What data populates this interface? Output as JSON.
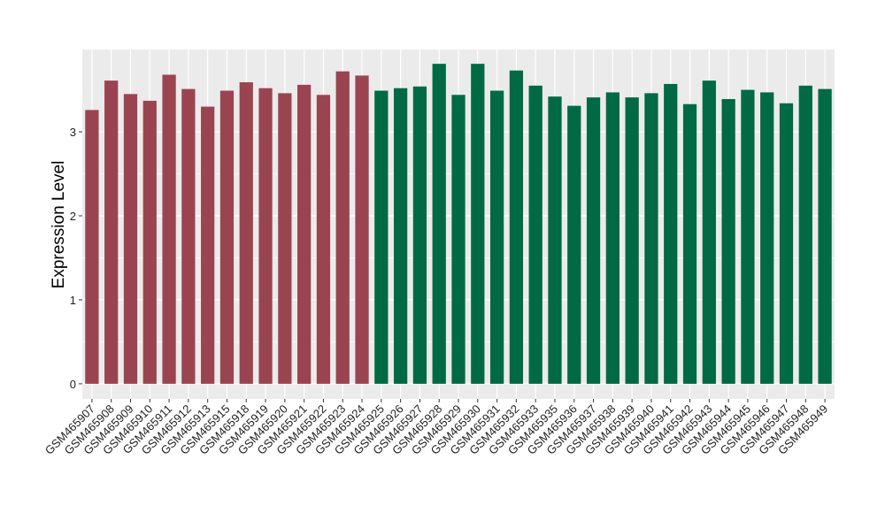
{
  "chart_data": {
    "type": "bar",
    "title": "",
    "xlabel": "",
    "ylabel": "Expression Level",
    "ylim": [
      -0.18,
      3.98
    ],
    "yticks": [
      0,
      1,
      2,
      3
    ],
    "grid": true,
    "legend": "none",
    "colors": {
      "group1": "#9b4451",
      "group2": "#006a45",
      "panel": "#ebebeb",
      "gridline": "#ffffff"
    },
    "categories": [
      "GSM465907",
      "GSM465908",
      "GSM465909",
      "GSM465910",
      "GSM465911",
      "GSM465912",
      "GSM465913",
      "GSM465915",
      "GSM465918",
      "GSM465919",
      "GSM465920",
      "GSM465921",
      "GSM465922",
      "GSM465923",
      "GSM465924",
      "GSM465925",
      "GSM465926",
      "GSM465927",
      "GSM465928",
      "GSM465929",
      "GSM465930",
      "GSM465931",
      "GSM465932",
      "GSM465933",
      "GSM465935",
      "GSM465936",
      "GSM465937",
      "GSM465938",
      "GSM465939",
      "GSM465940",
      "GSM465941",
      "GSM465942",
      "GSM465943",
      "GSM465944",
      "GSM465945",
      "GSM465946",
      "GSM465947",
      "GSM465948",
      "GSM465949"
    ],
    "values": [
      3.26,
      3.61,
      3.45,
      3.37,
      3.68,
      3.51,
      3.3,
      3.49,
      3.59,
      3.52,
      3.46,
      3.56,
      3.44,
      3.72,
      3.67,
      3.49,
      3.52,
      3.54,
      3.81,
      3.44,
      3.81,
      3.49,
      3.73,
      3.55,
      3.42,
      3.31,
      3.41,
      3.47,
      3.41,
      3.46,
      3.57,
      3.33,
      3.61,
      3.39,
      3.5,
      3.47,
      3.34,
      3.55,
      3.51
    ],
    "bar_groups": [
      "group1",
      "group1",
      "group1",
      "group1",
      "group1",
      "group1",
      "group1",
      "group1",
      "group1",
      "group1",
      "group1",
      "group1",
      "group1",
      "group1",
      "group1",
      "group2",
      "group2",
      "group2",
      "group2",
      "group2",
      "group2",
      "group2",
      "group2",
      "group2",
      "group2",
      "group2",
      "group2",
      "group2",
      "group2",
      "group2",
      "group2",
      "group2",
      "group2",
      "group2",
      "group2",
      "group2",
      "group2",
      "group2",
      "group2"
    ]
  }
}
